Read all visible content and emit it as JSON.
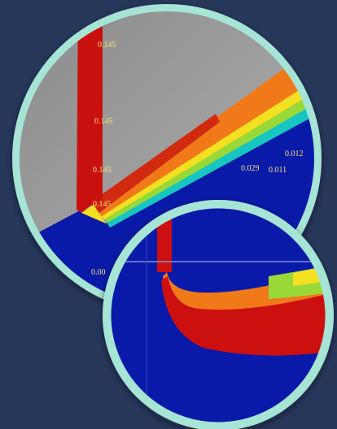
{
  "labels": [
    "0.145",
    "0.145",
    "0.145",
    "0.145",
    "0.029",
    "0.011",
    "0.012",
    "0.00"
  ]
}
